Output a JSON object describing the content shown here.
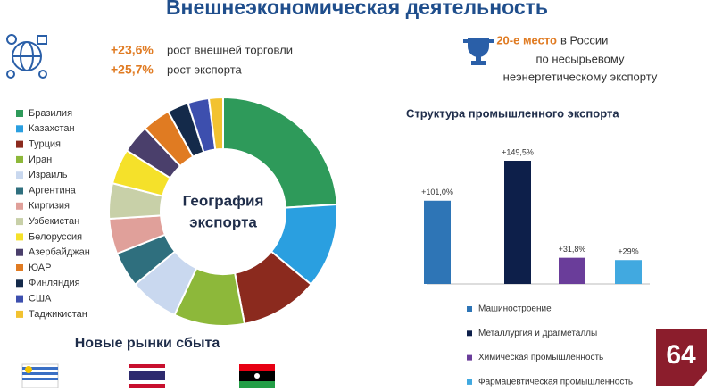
{
  "title": "Внешнеэкономическая деятельность",
  "stats": [
    {
      "value": "+23,6%",
      "label": "рост внешней торговли"
    },
    {
      "value": "+25,7%",
      "label": "рост экспорта"
    }
  ],
  "rank": {
    "value": "20-е место",
    "lines": [
      "в России",
      "по несырьевому",
      "неэнергетическому экспорту"
    ]
  },
  "markets_title": "Новые рынки сбыта",
  "badge": "64",
  "chart_data": [
    {
      "type": "donut",
      "center_label": [
        "География",
        "экспорта"
      ],
      "categories": [
        "Бразилия",
        "Казахстан",
        "Турция",
        "Иран",
        "Израиль",
        "Аргентина",
        "Киргизия",
        "Узбекистан",
        "Белоруссия",
        "Азербайджан",
        "ЮАР",
        "Финляндия",
        "США",
        "Таджикистан"
      ],
      "values": [
        24,
        12,
        11,
        10,
        7,
        5,
        5,
        5,
        5,
        4,
        4,
        3,
        3,
        2
      ],
      "colors": [
        "#2e9a5a",
        "#2a9fe0",
        "#8b2a1e",
        "#8db83a",
        "#c9d8ef",
        "#2f6f7e",
        "#e0a09a",
        "#c8d0a8",
        "#f5e12a",
        "#4a3f6b",
        "#e07b22",
        "#142a4a",
        "#3d4fae",
        "#f2c230"
      ]
    },
    {
      "type": "bar",
      "title": "Структура промышленного экспорта",
      "categories": [
        "Машиностроение",
        "Металлургия и драгметаллы",
        "Химическая промышленность",
        "Фармацевтическая промышленность"
      ],
      "values": [
        101.0,
        149.5,
        31.8,
        29
      ],
      "value_labels": [
        "+101,0%",
        "+149,5%",
        "+31,8%",
        "+29%"
      ],
      "colors": [
        "#2e75b6",
        "#0d1f4a",
        "#6a3d9a",
        "#41a9e0"
      ]
    }
  ]
}
